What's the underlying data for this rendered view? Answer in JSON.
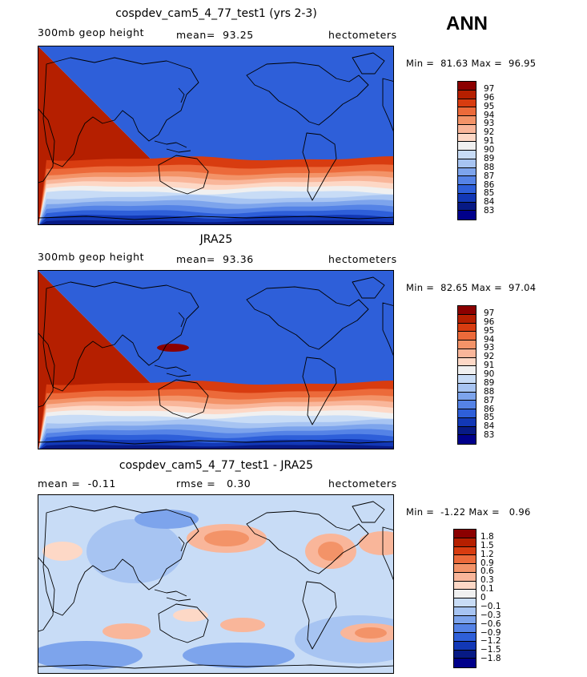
{
  "season": "ANN",
  "panels": [
    {
      "title": "cospdev_cam5_4_77_test1 (yrs 2-3)",
      "left": "300mb geop height",
      "middle": "mean=  93.25",
      "right": "hectometers",
      "minmax": "Min =  81.63 Max =  96.95",
      "colorbar": {
        "labels": [
          "97",
          "96",
          "95",
          "94",
          "93",
          "92",
          "91",
          "90",
          "89",
          "88",
          "87",
          "86",
          "85",
          "84",
          "83"
        ],
        "colors": [
          "#8b0000",
          "#b51f00",
          "#d83c10",
          "#ec6a3a",
          "#f39368",
          "#f9b69a",
          "#fdd8c6",
          "#f0f0f0",
          "#c8dcf6",
          "#a7c4f2",
          "#7da4ec",
          "#5583e6",
          "#2e5fd9",
          "#1238b6",
          "#071a85",
          "#00008b"
        ]
      },
      "field": "height"
    },
    {
      "title": "JRA25",
      "left": "300mb geop height",
      "middle": "mean=  93.36",
      "right": "hectometers",
      "minmax": "Min =  82.65 Max =  97.04",
      "colorbar": {
        "labels": [
          "97",
          "96",
          "95",
          "94",
          "93",
          "92",
          "91",
          "90",
          "89",
          "88",
          "87",
          "86",
          "85",
          "84",
          "83"
        ],
        "colors": [
          "#8b0000",
          "#b51f00",
          "#d83c10",
          "#ec6a3a",
          "#f39368",
          "#f9b69a",
          "#fdd8c6",
          "#f0f0f0",
          "#c8dcf6",
          "#a7c4f2",
          "#7da4ec",
          "#5583e6",
          "#2e5fd9",
          "#1238b6",
          "#071a85",
          "#00008b"
        ]
      },
      "field": "height"
    },
    {
      "title": "cospdev_cam5_4_77_test1 - JRA25",
      "left": "mean =  -0.11",
      "middle": "rmse =   0.30",
      "right": "hectometers",
      "minmax": "Min =  -1.22 Max =   0.96",
      "colorbar": {
        "labels": [
          "1.8",
          "1.5",
          "1.2",
          "0.9",
          "0.6",
          "0.3",
          "0.1",
          "0",
          "−0.1",
          "−0.3",
          "−0.6",
          "−0.9",
          "−1.2",
          "−1.5",
          "−1.8"
        ],
        "colors": [
          "#8b0000",
          "#b51f00",
          "#d83c10",
          "#ec6a3a",
          "#f39368",
          "#f9b69a",
          "#fdd8c6",
          "#f0f0f0",
          "#c8dcf6",
          "#a7c4f2",
          "#7da4ec",
          "#5583e6",
          "#2e5fd9",
          "#1238b6",
          "#071a85",
          "#00008b"
        ]
      },
      "field": "diff"
    }
  ]
}
